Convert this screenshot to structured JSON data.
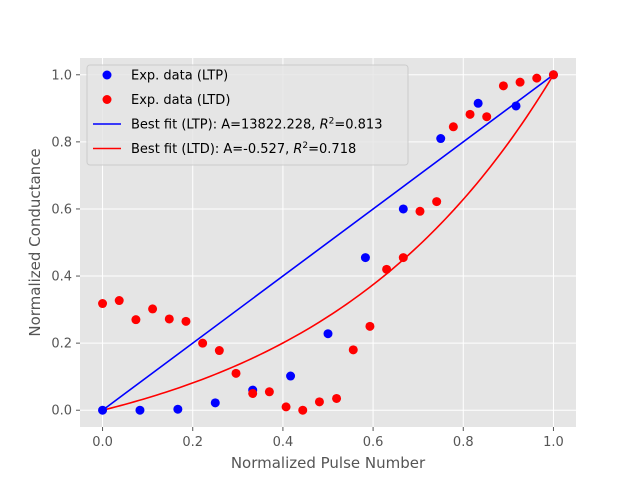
{
  "chart_data": {
    "type": "scatter",
    "title": "",
    "xlabel": "Normalized Pulse Number",
    "ylabel": "Normalized Conductance",
    "xlim": [
      -0.05,
      1.05
    ],
    "ylim": [
      -0.05,
      1.05
    ],
    "xticks": [
      0.0,
      0.2,
      0.4,
      0.6,
      0.8,
      1.0
    ],
    "yticks": [
      0.0,
      0.2,
      0.4,
      0.6,
      0.8,
      1.0
    ],
    "xtick_labels": [
      "0.0",
      "0.2",
      "0.4",
      "0.6",
      "0.8",
      "1.0"
    ],
    "ytick_labels": [
      "0.0",
      "0.2",
      "0.4",
      "0.6",
      "0.8",
      "1.0"
    ],
    "grid": true,
    "style": "ggplot",
    "legend_position": "upper-left",
    "series": [
      {
        "name": "Exp. data (LTP)",
        "kind": "scatter",
        "color": "#0000ff",
        "x": [
          0.0,
          0.083,
          0.167,
          0.25,
          0.333,
          0.417,
          0.5,
          0.583,
          0.667,
          0.75,
          0.833,
          0.917,
          1.0
        ],
        "y": [
          0.0,
          0.0,
          0.003,
          0.022,
          0.06,
          0.102,
          0.228,
          0.455,
          0.6,
          0.81,
          0.915,
          0.907,
          1.0
        ]
      },
      {
        "name": "Exp. data (LTD)",
        "kind": "scatter",
        "color": "#ff0000",
        "x": [
          0.0,
          0.037,
          0.074,
          0.111,
          0.148,
          0.185,
          0.222,
          0.259,
          0.296,
          0.333,
          0.37,
          0.407,
          0.444,
          0.481,
          0.519,
          0.556,
          0.593,
          0.63,
          0.667,
          0.704,
          0.741,
          0.778,
          0.815,
          0.852,
          0.889,
          0.926,
          0.963,
          1.0
        ],
        "y": [
          0.318,
          0.327,
          0.27,
          0.302,
          0.272,
          0.265,
          0.2,
          0.178,
          0.11,
          0.05,
          0.055,
          0.01,
          0.0,
          0.025,
          0.035,
          0.18,
          0.25,
          0.42,
          0.455,
          0.593,
          0.622,
          0.845,
          0.882,
          0.875,
          0.967,
          0.978,
          0.99,
          1.0
        ]
      },
      {
        "name": "Best fit (LTP): A=13822.228, R²=0.813",
        "kind": "line",
        "color": "#0000ff",
        "x": [
          0.0,
          1.0
        ],
        "y": [
          0.0,
          1.0
        ]
      },
      {
        "name": "Best fit (LTD): A=-0.527, R²=0.718",
        "kind": "line",
        "color": "#ff0000",
        "A": -0.527,
        "x": [
          0.0,
          1.0
        ],
        "y": [
          0.0,
          1.0
        ]
      }
    ],
    "legend": [
      {
        "label": "Exp. data (LTP)",
        "marker": "dot",
        "color": "#0000ff"
      },
      {
        "label": "Exp. data (LTD)",
        "marker": "dot",
        "color": "#ff0000"
      },
      {
        "label": "Best fit (LTP): A=13822.228, ",
        "r2_prefix": "R",
        "r2_sup": "2",
        "r2_value": "=0.813",
        "marker": "line",
        "color": "#0000ff"
      },
      {
        "label": "Best fit (LTD): A=-0.527, ",
        "r2_prefix": "R",
        "r2_sup": "2",
        "r2_value": "=0.718",
        "marker": "line",
        "color": "#ff0000"
      }
    ]
  }
}
